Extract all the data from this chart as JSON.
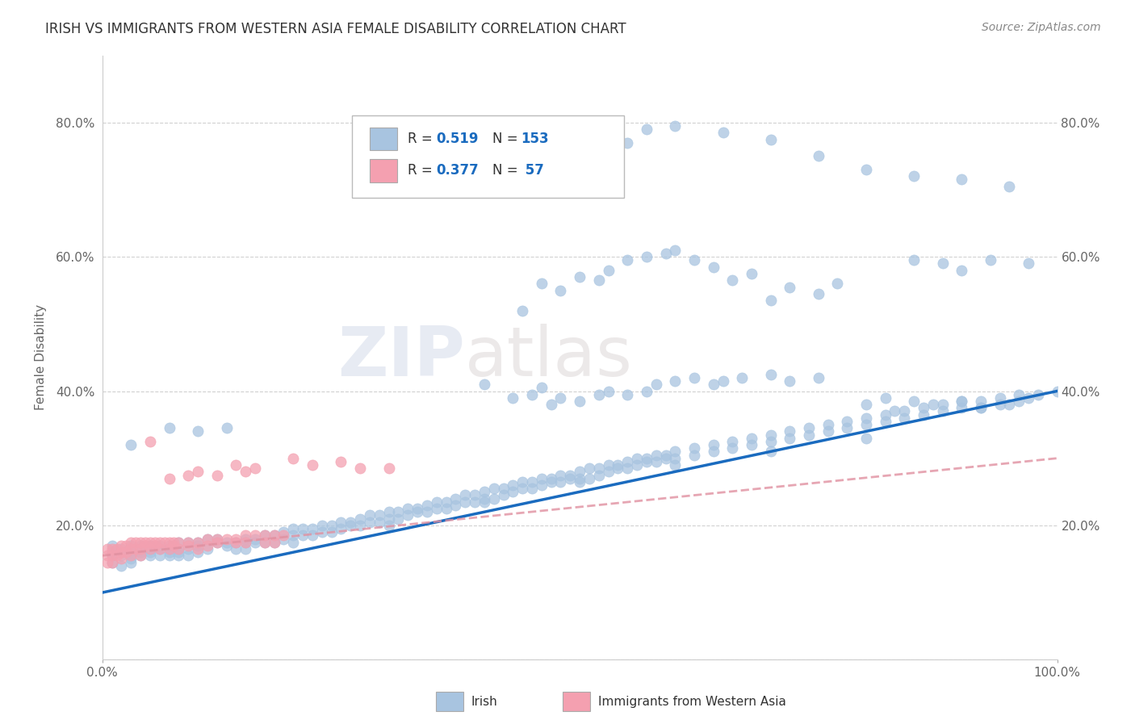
{
  "title": "IRISH VS IMMIGRANTS FROM WESTERN ASIA FEMALE DISABILITY CORRELATION CHART",
  "source": "Source: ZipAtlas.com",
  "ylabel": "Female Disability",
  "xlabel": "",
  "xlim": [
    0.0,
    1.0
  ],
  "ylim": [
    0.0,
    0.9
  ],
  "yticks": [
    0.0,
    0.2,
    0.4,
    0.6,
    0.8
  ],
  "ytick_labels": [
    "",
    "20.0%",
    "40.0%",
    "60.0%",
    "80.0%"
  ],
  "xtick_labels": [
    "0.0%",
    "100.0%"
  ],
  "irish_color": "#a8c4e0",
  "immigrant_color": "#f4a0b0",
  "irish_line_color": "#1a6bbf",
  "immigrant_line_color": "#e8a0b0",
  "background_color": "#ffffff",
  "watermark_zip": "ZIP",
  "watermark_atlas": "atlas",
  "irish_line_x": [
    0.0,
    1.0
  ],
  "irish_line_y": [
    0.1,
    0.4
  ],
  "immigrant_line_x": [
    0.0,
    1.0
  ],
  "immigrant_line_y": [
    0.155,
    0.3
  ],
  "irish_scatter": [
    [
      0.01,
      0.155
    ],
    [
      0.01,
      0.17
    ],
    [
      0.01,
      0.16
    ],
    [
      0.01,
      0.145
    ],
    [
      0.02,
      0.155
    ],
    [
      0.02,
      0.165
    ],
    [
      0.02,
      0.14
    ],
    [
      0.02,
      0.16
    ],
    [
      0.03,
      0.16
    ],
    [
      0.03,
      0.17
    ],
    [
      0.03,
      0.155
    ],
    [
      0.03,
      0.15
    ],
    [
      0.03,
      0.145
    ],
    [
      0.04,
      0.165
    ],
    [
      0.04,
      0.16
    ],
    [
      0.04,
      0.155
    ],
    [
      0.04,
      0.17
    ],
    [
      0.05,
      0.17
    ],
    [
      0.05,
      0.16
    ],
    [
      0.05,
      0.155
    ],
    [
      0.05,
      0.165
    ],
    [
      0.06,
      0.165
    ],
    [
      0.06,
      0.17
    ],
    [
      0.06,
      0.155
    ],
    [
      0.07,
      0.17
    ],
    [
      0.07,
      0.165
    ],
    [
      0.07,
      0.16
    ],
    [
      0.07,
      0.155
    ],
    [
      0.08,
      0.175
    ],
    [
      0.08,
      0.165
    ],
    [
      0.08,
      0.16
    ],
    [
      0.08,
      0.155
    ],
    [
      0.09,
      0.175
    ],
    [
      0.09,
      0.165
    ],
    [
      0.09,
      0.155
    ],
    [
      0.1,
      0.175
    ],
    [
      0.1,
      0.17
    ],
    [
      0.1,
      0.16
    ],
    [
      0.11,
      0.18
    ],
    [
      0.11,
      0.165
    ],
    [
      0.12,
      0.18
    ],
    [
      0.12,
      0.175
    ],
    [
      0.13,
      0.175
    ],
    [
      0.13,
      0.17
    ],
    [
      0.14,
      0.175
    ],
    [
      0.14,
      0.165
    ],
    [
      0.15,
      0.18
    ],
    [
      0.15,
      0.175
    ],
    [
      0.15,
      0.165
    ],
    [
      0.16,
      0.18
    ],
    [
      0.16,
      0.175
    ],
    [
      0.17,
      0.185
    ],
    [
      0.17,
      0.175
    ],
    [
      0.18,
      0.185
    ],
    [
      0.18,
      0.175
    ],
    [
      0.19,
      0.19
    ],
    [
      0.19,
      0.18
    ],
    [
      0.2,
      0.195
    ],
    [
      0.2,
      0.185
    ],
    [
      0.2,
      0.175
    ],
    [
      0.21,
      0.195
    ],
    [
      0.21,
      0.185
    ],
    [
      0.22,
      0.195
    ],
    [
      0.22,
      0.185
    ],
    [
      0.23,
      0.2
    ],
    [
      0.23,
      0.19
    ],
    [
      0.24,
      0.2
    ],
    [
      0.24,
      0.19
    ],
    [
      0.25,
      0.205
    ],
    [
      0.25,
      0.195
    ],
    [
      0.26,
      0.205
    ],
    [
      0.26,
      0.2
    ],
    [
      0.27,
      0.21
    ],
    [
      0.27,
      0.2
    ],
    [
      0.28,
      0.215
    ],
    [
      0.28,
      0.205
    ],
    [
      0.29,
      0.215
    ],
    [
      0.29,
      0.205
    ],
    [
      0.3,
      0.22
    ],
    [
      0.3,
      0.21
    ],
    [
      0.3,
      0.2
    ],
    [
      0.31,
      0.22
    ],
    [
      0.31,
      0.21
    ],
    [
      0.32,
      0.225
    ],
    [
      0.32,
      0.215
    ],
    [
      0.33,
      0.225
    ],
    [
      0.33,
      0.22
    ],
    [
      0.34,
      0.23
    ],
    [
      0.34,
      0.22
    ],
    [
      0.35,
      0.235
    ],
    [
      0.35,
      0.225
    ],
    [
      0.36,
      0.235
    ],
    [
      0.36,
      0.225
    ],
    [
      0.37,
      0.24
    ],
    [
      0.37,
      0.23
    ],
    [
      0.38,
      0.245
    ],
    [
      0.38,
      0.235
    ],
    [
      0.39,
      0.245
    ],
    [
      0.39,
      0.235
    ],
    [
      0.4,
      0.25
    ],
    [
      0.4,
      0.24
    ],
    [
      0.4,
      0.235
    ],
    [
      0.41,
      0.255
    ],
    [
      0.41,
      0.24
    ],
    [
      0.42,
      0.255
    ],
    [
      0.42,
      0.245
    ],
    [
      0.43,
      0.26
    ],
    [
      0.43,
      0.25
    ],
    [
      0.44,
      0.265
    ],
    [
      0.44,
      0.255
    ],
    [
      0.45,
      0.265
    ],
    [
      0.45,
      0.255
    ],
    [
      0.46,
      0.27
    ],
    [
      0.46,
      0.26
    ],
    [
      0.47,
      0.27
    ],
    [
      0.47,
      0.265
    ],
    [
      0.48,
      0.275
    ],
    [
      0.48,
      0.265
    ],
    [
      0.49,
      0.275
    ],
    [
      0.49,
      0.27
    ],
    [
      0.5,
      0.28
    ],
    [
      0.5,
      0.27
    ],
    [
      0.5,
      0.265
    ],
    [
      0.51,
      0.285
    ],
    [
      0.51,
      0.27
    ],
    [
      0.52,
      0.285
    ],
    [
      0.52,
      0.275
    ],
    [
      0.53,
      0.29
    ],
    [
      0.53,
      0.28
    ],
    [
      0.54,
      0.29
    ],
    [
      0.54,
      0.285
    ],
    [
      0.55,
      0.295
    ],
    [
      0.55,
      0.285
    ],
    [
      0.56,
      0.3
    ],
    [
      0.56,
      0.29
    ],
    [
      0.57,
      0.3
    ],
    [
      0.57,
      0.295
    ],
    [
      0.58,
      0.305
    ],
    [
      0.58,
      0.295
    ],
    [
      0.59,
      0.305
    ],
    [
      0.59,
      0.3
    ],
    [
      0.6,
      0.31
    ],
    [
      0.6,
      0.3
    ],
    [
      0.6,
      0.29
    ],
    [
      0.62,
      0.315
    ],
    [
      0.62,
      0.305
    ],
    [
      0.64,
      0.32
    ],
    [
      0.64,
      0.31
    ],
    [
      0.66,
      0.325
    ],
    [
      0.66,
      0.315
    ],
    [
      0.68,
      0.33
    ],
    [
      0.68,
      0.32
    ],
    [
      0.7,
      0.335
    ],
    [
      0.7,
      0.325
    ],
    [
      0.7,
      0.31
    ],
    [
      0.72,
      0.34
    ],
    [
      0.72,
      0.33
    ],
    [
      0.74,
      0.345
    ],
    [
      0.74,
      0.335
    ],
    [
      0.76,
      0.35
    ],
    [
      0.76,
      0.34
    ],
    [
      0.78,
      0.355
    ],
    [
      0.78,
      0.345
    ],
    [
      0.8,
      0.36
    ],
    [
      0.8,
      0.35
    ],
    [
      0.8,
      0.33
    ],
    [
      0.82,
      0.365
    ],
    [
      0.82,
      0.355
    ],
    [
      0.84,
      0.37
    ],
    [
      0.84,
      0.36
    ],
    [
      0.86,
      0.375
    ],
    [
      0.86,
      0.365
    ],
    [
      0.88,
      0.38
    ],
    [
      0.88,
      0.37
    ],
    [
      0.9,
      0.385
    ],
    [
      0.9,
      0.375
    ],
    [
      0.92,
      0.385
    ],
    [
      0.92,
      0.375
    ],
    [
      0.94,
      0.39
    ],
    [
      0.94,
      0.38
    ],
    [
      0.96,
      0.395
    ],
    [
      0.96,
      0.385
    ],
    [
      0.98,
      0.395
    ],
    [
      1.0,
      0.4
    ],
    [
      0.03,
      0.32
    ],
    [
      0.07,
      0.345
    ],
    [
      0.1,
      0.34
    ],
    [
      0.13,
      0.345
    ],
    [
      0.4,
      0.41
    ],
    [
      0.43,
      0.39
    ],
    [
      0.45,
      0.395
    ],
    [
      0.46,
      0.405
    ],
    [
      0.47,
      0.38
    ],
    [
      0.48,
      0.39
    ],
    [
      0.5,
      0.385
    ],
    [
      0.52,
      0.395
    ],
    [
      0.53,
      0.4
    ],
    [
      0.55,
      0.395
    ],
    [
      0.57,
      0.4
    ],
    [
      0.58,
      0.41
    ],
    [
      0.6,
      0.415
    ],
    [
      0.62,
      0.42
    ],
    [
      0.64,
      0.41
    ],
    [
      0.65,
      0.415
    ],
    [
      0.67,
      0.42
    ],
    [
      0.7,
      0.425
    ],
    [
      0.72,
      0.415
    ],
    [
      0.75,
      0.42
    ],
    [
      0.8,
      0.38
    ],
    [
      0.82,
      0.39
    ],
    [
      0.83,
      0.37
    ],
    [
      0.85,
      0.385
    ],
    [
      0.87,
      0.38
    ],
    [
      0.9,
      0.385
    ],
    [
      0.92,
      0.375
    ],
    [
      0.95,
      0.38
    ],
    [
      0.97,
      0.39
    ],
    [
      0.44,
      0.52
    ],
    [
      0.46,
      0.56
    ],
    [
      0.48,
      0.55
    ],
    [
      0.5,
      0.57
    ],
    [
      0.52,
      0.565
    ],
    [
      0.53,
      0.58
    ],
    [
      0.55,
      0.595
    ],
    [
      0.57,
      0.6
    ],
    [
      0.59,
      0.605
    ],
    [
      0.6,
      0.61
    ],
    [
      0.62,
      0.595
    ],
    [
      0.64,
      0.585
    ],
    [
      0.66,
      0.565
    ],
    [
      0.68,
      0.575
    ],
    [
      0.7,
      0.535
    ],
    [
      0.72,
      0.555
    ],
    [
      0.75,
      0.545
    ],
    [
      0.77,
      0.56
    ],
    [
      0.55,
      0.77
    ],
    [
      0.57,
      0.79
    ],
    [
      0.6,
      0.795
    ],
    [
      0.65,
      0.785
    ],
    [
      0.7,
      0.775
    ],
    [
      0.75,
      0.75
    ],
    [
      0.8,
      0.73
    ],
    [
      0.85,
      0.72
    ],
    [
      0.9,
      0.715
    ],
    [
      0.95,
      0.705
    ],
    [
      0.85,
      0.595
    ],
    [
      0.88,
      0.59
    ],
    [
      0.9,
      0.58
    ],
    [
      0.93,
      0.595
    ],
    [
      0.97,
      0.59
    ]
  ],
  "immigrant_scatter": [
    [
      0.005,
      0.155
    ],
    [
      0.005,
      0.165
    ],
    [
      0.005,
      0.145
    ],
    [
      0.01,
      0.165
    ],
    [
      0.01,
      0.155
    ],
    [
      0.01,
      0.145
    ],
    [
      0.015,
      0.165
    ],
    [
      0.015,
      0.155
    ],
    [
      0.02,
      0.17
    ],
    [
      0.02,
      0.16
    ],
    [
      0.02,
      0.15
    ],
    [
      0.025,
      0.17
    ],
    [
      0.025,
      0.16
    ],
    [
      0.03,
      0.175
    ],
    [
      0.03,
      0.165
    ],
    [
      0.03,
      0.155
    ],
    [
      0.035,
      0.175
    ],
    [
      0.035,
      0.165
    ],
    [
      0.04,
      0.175
    ],
    [
      0.04,
      0.165
    ],
    [
      0.04,
      0.155
    ],
    [
      0.045,
      0.175
    ],
    [
      0.045,
      0.17
    ],
    [
      0.05,
      0.175
    ],
    [
      0.05,
      0.165
    ],
    [
      0.055,
      0.175
    ],
    [
      0.055,
      0.17
    ],
    [
      0.06,
      0.175
    ],
    [
      0.06,
      0.165
    ],
    [
      0.065,
      0.175
    ],
    [
      0.07,
      0.175
    ],
    [
      0.07,
      0.165
    ],
    [
      0.075,
      0.175
    ],
    [
      0.075,
      0.17
    ],
    [
      0.08,
      0.175
    ],
    [
      0.08,
      0.165
    ],
    [
      0.09,
      0.175
    ],
    [
      0.09,
      0.17
    ],
    [
      0.1,
      0.175
    ],
    [
      0.1,
      0.165
    ],
    [
      0.11,
      0.18
    ],
    [
      0.11,
      0.17
    ],
    [
      0.12,
      0.18
    ],
    [
      0.12,
      0.175
    ],
    [
      0.13,
      0.18
    ],
    [
      0.14,
      0.18
    ],
    [
      0.14,
      0.175
    ],
    [
      0.15,
      0.185
    ],
    [
      0.15,
      0.175
    ],
    [
      0.16,
      0.185
    ],
    [
      0.17,
      0.185
    ],
    [
      0.17,
      0.175
    ],
    [
      0.18,
      0.185
    ],
    [
      0.18,
      0.175
    ],
    [
      0.19,
      0.185
    ],
    [
      0.05,
      0.325
    ],
    [
      0.07,
      0.27
    ],
    [
      0.09,
      0.275
    ],
    [
      0.1,
      0.28
    ],
    [
      0.12,
      0.275
    ],
    [
      0.14,
      0.29
    ],
    [
      0.15,
      0.28
    ],
    [
      0.16,
      0.285
    ],
    [
      0.2,
      0.3
    ],
    [
      0.22,
      0.29
    ],
    [
      0.25,
      0.295
    ],
    [
      0.27,
      0.285
    ],
    [
      0.3,
      0.285
    ]
  ]
}
